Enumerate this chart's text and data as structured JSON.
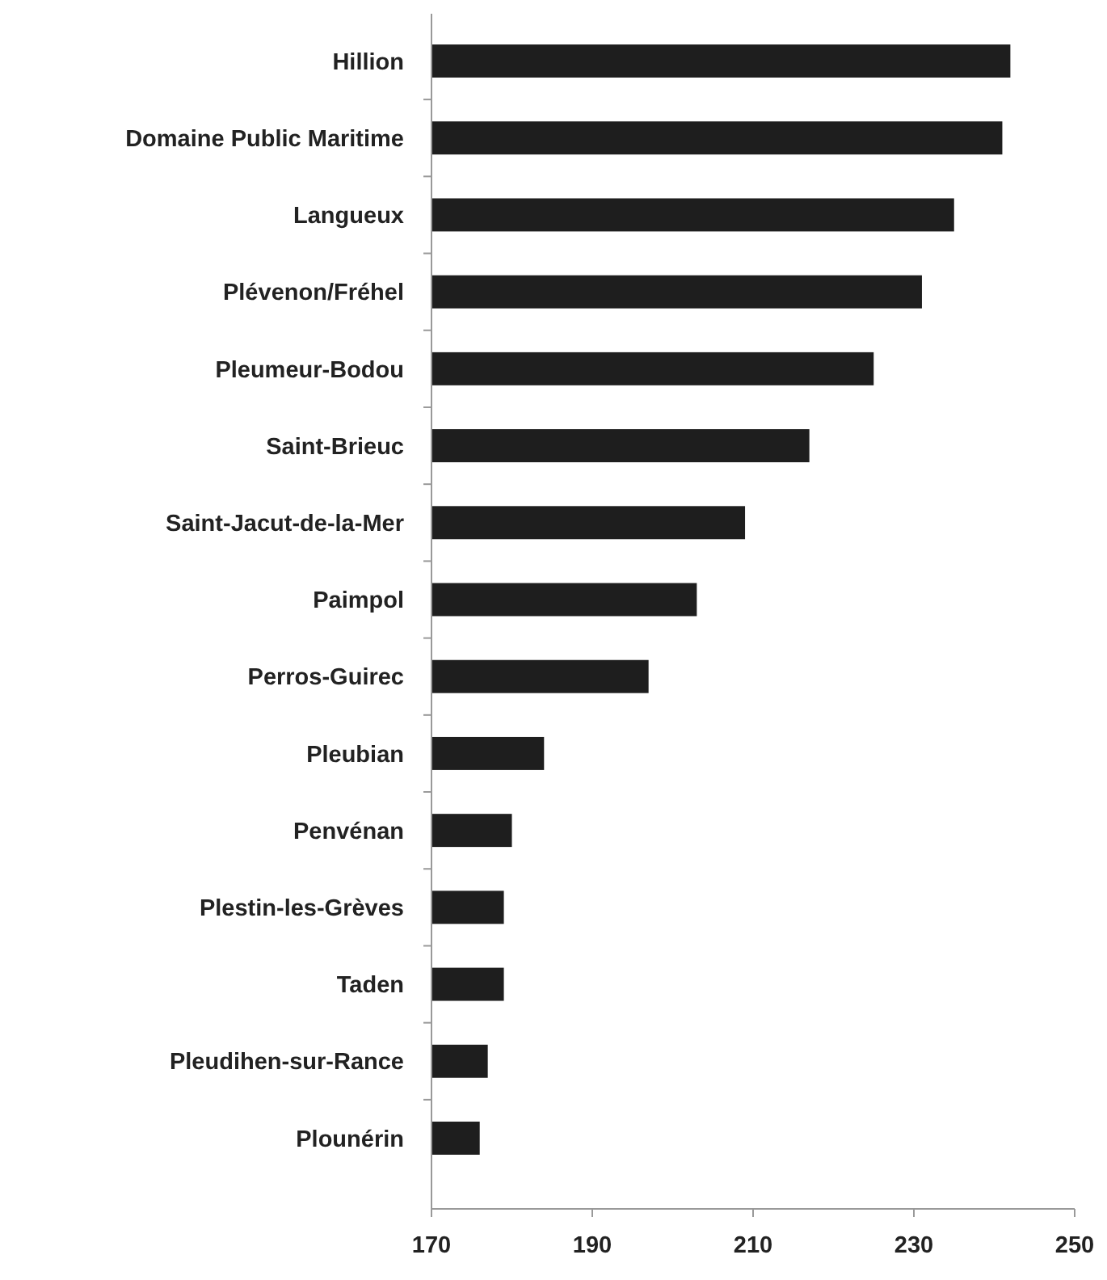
{
  "chart_data": {
    "type": "bar",
    "orientation": "horizontal",
    "categories": [
      "Hillion",
      "Domaine Public Maritime",
      "Langueux",
      "Plévenon/Fréhel",
      "Pleumeur-Bodou",
      "Saint-Brieuc",
      "Saint-Jacut-de-la-Mer",
      "Paimpol",
      "Perros-Guirec",
      "Pleubian",
      "Penvénan",
      "Plestin-les-Grèves",
      "Taden",
      "Pleudihen-sur-Rance",
      "Plounérin"
    ],
    "values": [
      242,
      241,
      235,
      231,
      225,
      217,
      209,
      203,
      197,
      184,
      180,
      179,
      179,
      177,
      176
    ],
    "color": "#1e1e1e",
    "xlim": [
      170,
      250
    ],
    "xticks": [
      170,
      190,
      210,
      230,
      250
    ],
    "grid": false
  }
}
